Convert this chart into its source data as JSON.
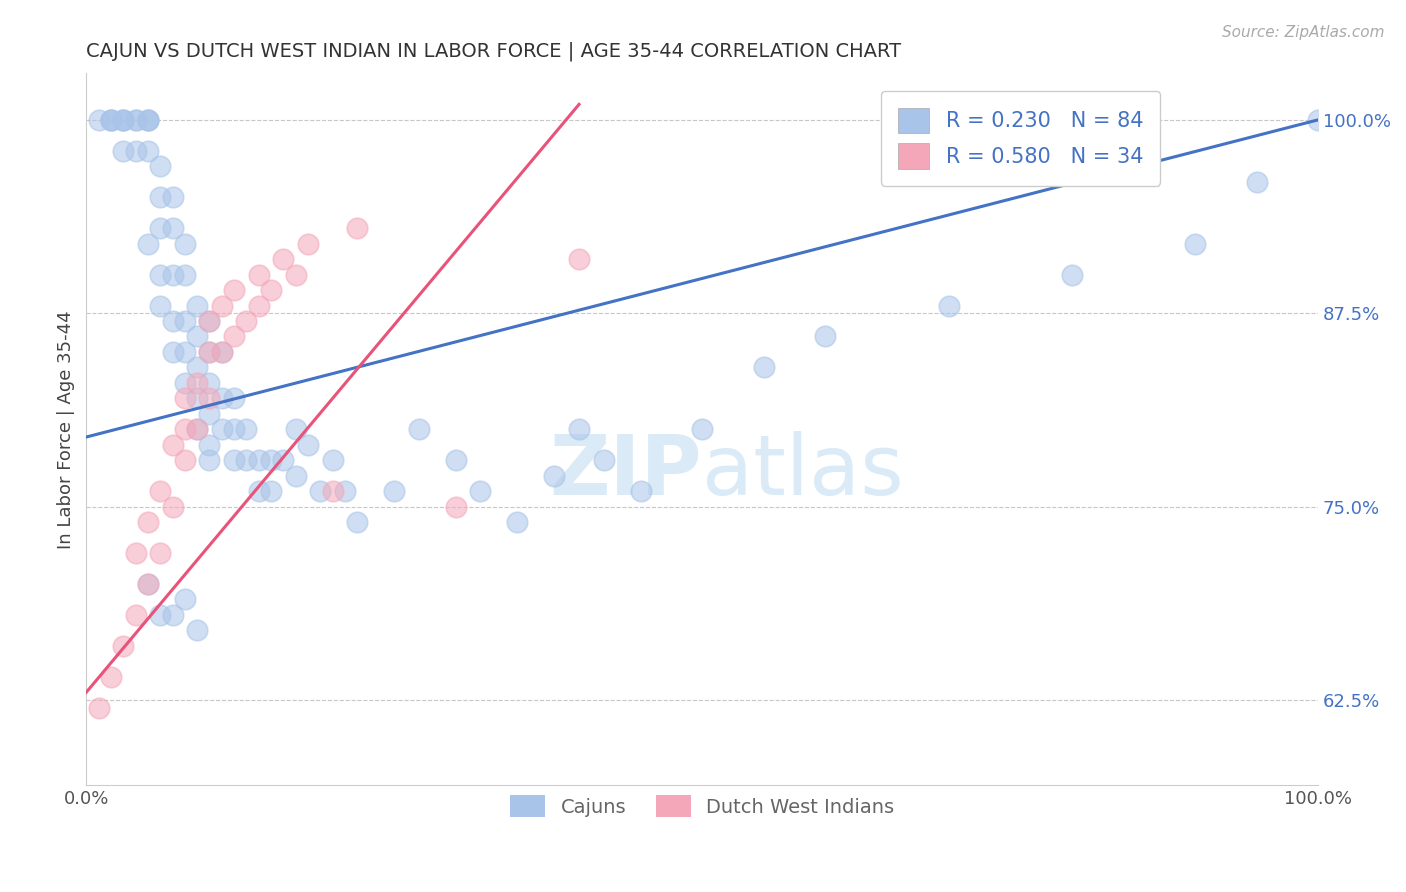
{
  "title": "CAJUN VS DUTCH WEST INDIAN IN LABOR FORCE | AGE 35-44 CORRELATION CHART",
  "source_text": "Source: ZipAtlas.com",
  "ylabel": "In Labor Force | Age 35-44",
  "cajun_R": 0.23,
  "cajun_N": 84,
  "dutch_R": 0.58,
  "dutch_N": 34,
  "legend_labels": [
    "Cajuns",
    "Dutch West Indians"
  ],
  "cajun_color": "#a8c4e8",
  "dutch_color": "#f4a7b9",
  "cajun_line_color": "#4472c4",
  "dutch_line_color": "#e8537a",
  "background_color": "#ffffff",
  "grid_color": "#b0b0b0",
  "watermark_color": "#d6e8f5",
  "cajun_x": [
    0.01,
    0.02,
    0.02,
    0.02,
    0.03,
    0.03,
    0.03,
    0.03,
    0.04,
    0.04,
    0.04,
    0.05,
    0.05,
    0.05,
    0.05,
    0.05,
    0.06,
    0.06,
    0.06,
    0.06,
    0.06,
    0.07,
    0.07,
    0.07,
    0.07,
    0.07,
    0.08,
    0.08,
    0.08,
    0.08,
    0.08,
    0.09,
    0.09,
    0.09,
    0.09,
    0.09,
    0.1,
    0.1,
    0.1,
    0.1,
    0.1,
    0.1,
    0.11,
    0.11,
    0.11,
    0.12,
    0.12,
    0.12,
    0.13,
    0.13,
    0.14,
    0.14,
    0.15,
    0.15,
    0.16,
    0.17,
    0.17,
    0.18,
    0.19,
    0.2,
    0.21,
    0.22,
    0.25,
    0.27,
    0.3,
    0.32,
    0.35,
    0.38,
    0.4,
    0.42,
    0.45,
    0.5,
    0.55,
    0.6,
    0.7,
    0.8,
    0.9,
    0.95,
    1.0,
    0.05,
    0.06,
    0.07,
    0.08,
    0.09
  ],
  "cajun_y": [
    1.0,
    1.0,
    1.0,
    1.0,
    1.0,
    1.0,
    1.0,
    0.98,
    1.0,
    1.0,
    0.98,
    1.0,
    1.0,
    1.0,
    0.98,
    0.92,
    0.97,
    0.95,
    0.93,
    0.9,
    0.88,
    0.95,
    0.93,
    0.9,
    0.87,
    0.85,
    0.92,
    0.9,
    0.87,
    0.85,
    0.83,
    0.88,
    0.86,
    0.84,
    0.82,
    0.8,
    0.87,
    0.85,
    0.83,
    0.81,
    0.79,
    0.78,
    0.85,
    0.82,
    0.8,
    0.82,
    0.8,
    0.78,
    0.8,
    0.78,
    0.78,
    0.76,
    0.78,
    0.76,
    0.78,
    0.8,
    0.77,
    0.79,
    0.76,
    0.78,
    0.76,
    0.74,
    0.76,
    0.8,
    0.78,
    0.76,
    0.74,
    0.77,
    0.8,
    0.78,
    0.76,
    0.8,
    0.84,
    0.86,
    0.88,
    0.9,
    0.92,
    0.96,
    1.0,
    0.7,
    0.68,
    0.68,
    0.69,
    0.67
  ],
  "dutch_x": [
    0.01,
    0.02,
    0.03,
    0.04,
    0.04,
    0.05,
    0.05,
    0.06,
    0.06,
    0.07,
    0.07,
    0.08,
    0.08,
    0.08,
    0.09,
    0.09,
    0.1,
    0.1,
    0.1,
    0.11,
    0.11,
    0.12,
    0.12,
    0.13,
    0.14,
    0.14,
    0.15,
    0.16,
    0.17,
    0.18,
    0.2,
    0.22,
    0.3,
    0.4
  ],
  "dutch_y": [
    0.62,
    0.64,
    0.66,
    0.68,
    0.72,
    0.7,
    0.74,
    0.72,
    0.76,
    0.75,
    0.79,
    0.78,
    0.8,
    0.82,
    0.8,
    0.83,
    0.82,
    0.85,
    0.87,
    0.85,
    0.88,
    0.86,
    0.89,
    0.87,
    0.88,
    0.9,
    0.89,
    0.91,
    0.9,
    0.92,
    0.76,
    0.93,
    0.75,
    0.91
  ],
  "xlim": [
    0.0,
    1.0
  ],
  "ylim": [
    0.57,
    1.03
  ],
  "ytick_positions": [
    0.625,
    0.75,
    0.875,
    1.0
  ],
  "ytick_labels": [
    "62.5%",
    "75.0%",
    "87.5%",
    "100.0%"
  ]
}
